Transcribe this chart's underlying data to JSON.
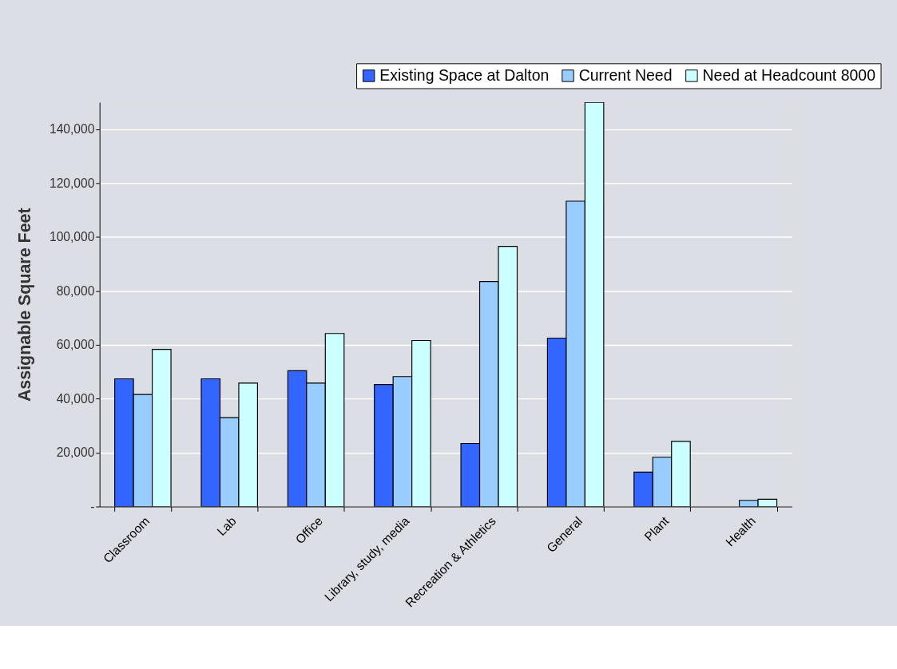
{
  "chart_data": {
    "type": "bar",
    "ylabel": "Assignable Square Feet",
    "categories": [
      "Classroom",
      "Lab",
      "Office",
      "Library, study, media",
      "Recreation & Athletics",
      "General",
      "Plant",
      "Health"
    ],
    "series": [
      {
        "name": "Existing Space at Dalton",
        "color": "#3366ff",
        "values": [
          47400,
          47400,
          50400,
          45300,
          23400,
          62500,
          12800,
          null
        ]
      },
      {
        "name": "Current Need",
        "color": "#99ccff",
        "values": [
          41600,
          33000,
          45800,
          48200,
          83500,
          113300,
          18300,
          2300
        ]
      },
      {
        "name": "Need at Headcount 8000",
        "color": "#ccffff",
        "values": [
          58300,
          45800,
          64200,
          61600,
          96500,
          150000,
          24200,
          2700
        ]
      }
    ],
    "ylim": [
      0,
      150000
    ],
    "yticks": [
      {
        "value": 0,
        "label": "-"
      },
      {
        "value": 20000,
        "label": "20,000"
      },
      {
        "value": 40000,
        "label": "40,000"
      },
      {
        "value": 60000,
        "label": "60,000"
      },
      {
        "value": 80000,
        "label": "80,000"
      },
      {
        "value": 100000,
        "label": "100,000"
      },
      {
        "value": 120000,
        "label": "120,000"
      },
      {
        "value": 140000,
        "label": "140,000"
      }
    ],
    "grid": "y",
    "legend": "top right"
  }
}
